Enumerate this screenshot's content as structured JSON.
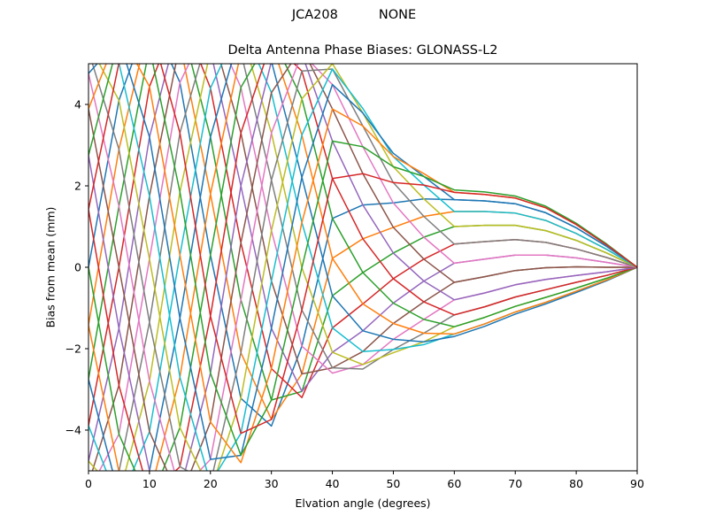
{
  "figure": {
    "suptitle": "JCA208          NONE",
    "title": "Delta Antenna Phase Biases: GLONASS-L2",
    "xlabel": "Elvation angle (degrees)",
    "ylabel": "Bias from mean (mm)"
  },
  "colors": [
    "#1f77b4",
    "#ff7f0e",
    "#2ca02c",
    "#d62728",
    "#9467bd",
    "#8c564b",
    "#e377c2",
    "#7f7f7f",
    "#bcbd22",
    "#17becf"
  ],
  "chart_data": {
    "type": "line",
    "title": "Delta Antenna Phase Biases: GLONASS-L2",
    "suptitle": "JCA208          NONE",
    "xlabel": "Elvation angle (degrees)",
    "ylabel": "Bias from mean (mm)",
    "xlim": [
      0,
      90
    ],
    "ylim": [
      -5,
      5
    ],
    "xticks": [
      0,
      10,
      20,
      30,
      40,
      50,
      60,
      70,
      80,
      90
    ],
    "yticks": [
      -4,
      -2,
      0,
      2,
      4
    ],
    "grid": false,
    "legend": null,
    "x": [
      0,
      5,
      10,
      15,
      20,
      25,
      30,
      35,
      40,
      45,
      50,
      55,
      60,
      65,
      70,
      75,
      80,
      85,
      90
    ],
    "series": [
      {
        "name": "s0",
        "values": [
          0,
          4.1,
          6.2,
          4.54,
          0.3,
          -3.22,
          -3.9,
          -1.94,
          1.2,
          1.53,
          1.58,
          1.68,
          1.66,
          1.63,
          1.56,
          1.34,
          0.97,
          0.51,
          0
        ]
      },
      {
        "name": "s1",
        "values": [
          -1.42,
          2.9,
          6.0,
          5.5,
          1.8,
          -2.1,
          -3.74,
          -2.62,
          0.22,
          0.7,
          0.98,
          1.25,
          1.37,
          1.37,
          1.33,
          1.15,
          0.83,
          0.44,
          0
        ]
      },
      {
        "name": "s2",
        "values": [
          -2.75,
          1.5,
          5.4,
          6.1,
          3.2,
          -0.8,
          -3.26,
          -3.05,
          -0.7,
          -0.13,
          0.35,
          0.74,
          1.0,
          1.03,
          1.03,
          0.9,
          0.66,
          0.35,
          0
        ]
      },
      {
        "name": "s3",
        "values": [
          -3.89,
          0,
          4.44,
          6.3,
          4.4,
          0.6,
          -2.49,
          -3.2,
          -1.49,
          -0.9,
          -0.28,
          0.2,
          0.57,
          0.63,
          0.68,
          0.61,
          0.45,
          0.24,
          0
        ]
      },
      {
        "name": "s4",
        "values": [
          -4.76,
          -1.5,
          3.2,
          6.1,
          5.32,
          2.0,
          -1.5,
          -3.05,
          -2.09,
          -1.56,
          -0.88,
          -0.34,
          0.1,
          0.2,
          0.3,
          0.3,
          0.23,
          0.12,
          0
        ]
      },
      {
        "name": "s5",
        "values": [
          -5.31,
          -2.9,
          1.75,
          5.5,
          5.9,
          3.3,
          -0.34,
          -2.62,
          -2.47,
          -2.07,
          -1.38,
          -0.85,
          -0.37,
          -0.23,
          -0.08,
          -0.01,
          0.01,
          0,
          0
        ]
      },
      {
        "name": "s6",
        "values": [
          -5.5,
          -4.1,
          0.2,
          4.54,
          6.1,
          4.42,
          0.9,
          -1.94,
          -2.6,
          -2.39,
          -1.77,
          -1.28,
          -0.8,
          -0.63,
          -0.43,
          -0.3,
          -0.2,
          -0.11,
          0
        ]
      },
      {
        "name": "s7",
        "values": [
          -5.31,
          -5.02,
          -1.35,
          3.3,
          5.9,
          5.28,
          2.14,
          -1.05,
          -2.47,
          -2.5,
          -2.02,
          -1.62,
          -1.17,
          -0.97,
          -0.73,
          -0.55,
          -0.37,
          -0.2,
          0
        ]
      },
      {
        "name": "s8",
        "values": [
          -4.76,
          -5.6,
          -2.8,
          1.85,
          5.32,
          5.82,
          3.3,
          -0.01,
          -2.09,
          -2.39,
          -2.1,
          -1.83,
          -1.46,
          -1.23,
          -0.96,
          -0.74,
          -0.51,
          -0.27,
          0
        ]
      },
      {
        "name": "s9",
        "values": [
          -3.89,
          -5.8,
          -4.04,
          0.3,
          4.4,
          6.0,
          4.29,
          1.1,
          -1.49,
          -2.07,
          -2.02,
          -1.9,
          -1.64,
          -1.39,
          -1.1,
          -0.86,
          -0.59,
          -0.31,
          0
        ]
      },
      {
        "name": "s10",
        "values": [
          -2.75,
          -5.6,
          -5.0,
          -1.25,
          3.2,
          5.82,
          5.06,
          2.21,
          -0.7,
          -1.56,
          -1.77,
          -1.83,
          -1.7,
          -1.45,
          -1.15,
          -0.9,
          -0.62,
          -0.33,
          0
        ]
      },
      {
        "name": "s11",
        "values": [
          -1.42,
          -5.02,
          -5.6,
          -2.7,
          1.8,
          5.28,
          5.54,
          3.25,
          0.22,
          -0.9,
          -1.38,
          -1.62,
          -1.64,
          -1.39,
          -1.1,
          -0.86,
          -0.59,
          -0.31,
          0
        ]
      },
      {
        "name": "s12",
        "values": [
          0,
          -4.1,
          -5.8,
          -3.94,
          0.3,
          4.42,
          5.7,
          4.14,
          1.2,
          -0.13,
          -0.88,
          -1.28,
          -1.46,
          -1.23,
          -0.96,
          -0.74,
          -0.51,
          -0.27,
          0
        ]
      },
      {
        "name": "s13",
        "values": [
          1.42,
          -2.9,
          -5.6,
          -4.9,
          -1.2,
          3.3,
          5.54,
          4.82,
          2.18,
          0.7,
          -0.28,
          -0.85,
          -1.17,
          -0.97,
          -0.73,
          -0.55,
          -0.37,
          -0.2,
          0
        ]
      },
      {
        "name": "s14",
        "values": [
          2.75,
          -1.5,
          -5.0,
          -5.5,
          -2.6,
          2.0,
          5.06,
          5.25,
          3.1,
          1.53,
          0.35,
          -0.34,
          -0.8,
          -0.63,
          -0.43,
          -0.3,
          -0.2,
          -0.11,
          0
        ]
      },
      {
        "name": "s15",
        "values": [
          3.89,
          0,
          -4.04,
          -5.7,
          -3.8,
          0.6,
          4.29,
          5.4,
          3.89,
          2.3,
          0.98,
          0.2,
          -0.37,
          -0.23,
          -0.08,
          -0.01,
          0.01,
          0,
          0
        ]
      },
      {
        "name": "s16",
        "values": [
          4.76,
          1.5,
          -2.8,
          -5.5,
          -4.72,
          -0.8,
          3.3,
          5.25,
          4.49,
          2.96,
          1.58,
          0.74,
          0.1,
          0.2,
          0.3,
          0.3,
          0.23,
          0.12,
          0
        ]
      },
      {
        "name": "s17",
        "values": [
          5.31,
          2.9,
          -1.35,
          -4.9,
          -5.3,
          -2.1,
          2.14,
          4.82,
          4.87,
          3.47,
          2.08,
          1.25,
          0.57,
          0.63,
          0.68,
          0.61,
          0.45,
          0.24,
          0
        ]
      },
      {
        "name": "s18",
        "values": [
          5.5,
          4.1,
          0.2,
          -3.94,
          -5.5,
          -3.22,
          0.9,
          4.14,
          5.0,
          3.79,
          2.47,
          1.68,
          1.0,
          1.03,
          1.03,
          0.9,
          0.66,
          0.35,
          0
        ]
      },
      {
        "name": "s19",
        "values": [
          5.31,
          5.02,
          1.75,
          -2.7,
          -5.3,
          -4.08,
          -0.34,
          3.25,
          4.87,
          3.9,
          2.72,
          2.02,
          1.37,
          1.37,
          1.33,
          1.15,
          0.83,
          0.44,
          0
        ]
      },
      {
        "name": "s20",
        "values": [
          4.76,
          5.6,
          3.2,
          -1.25,
          -4.72,
          -4.62,
          -1.5,
          2.21,
          4.49,
          3.79,
          2.8,
          2.23,
          1.66,
          1.63,
          1.56,
          1.34,
          0.97,
          0.51,
          0
        ]
      },
      {
        "name": "s21",
        "values": [
          3.89,
          5.8,
          4.44,
          0.3,
          -3.8,
          -4.8,
          -2.49,
          1.1,
          3.89,
          3.47,
          2.72,
          2.3,
          1.84,
          1.79,
          1.7,
          1.46,
          1.05,
          0.55,
          0
        ]
      },
      {
        "name": "s22",
        "values": [
          2.75,
          5.6,
          5.4,
          1.85,
          -2.6,
          -4.62,
          -3.26,
          -0.01,
          3.1,
          2.96,
          2.47,
          2.23,
          1.9,
          1.85,
          1.75,
          1.5,
          1.08,
          0.57,
          0
        ]
      },
      {
        "name": "s23",
        "values": [
          1.42,
          5.02,
          6.0,
          3.3,
          -1.2,
          -4.08,
          -3.74,
          -1.05,
          2.18,
          2.3,
          2.08,
          2.02,
          1.84,
          1.79,
          1.7,
          1.46,
          1.05,
          0.55,
          0
        ]
      }
    ]
  }
}
